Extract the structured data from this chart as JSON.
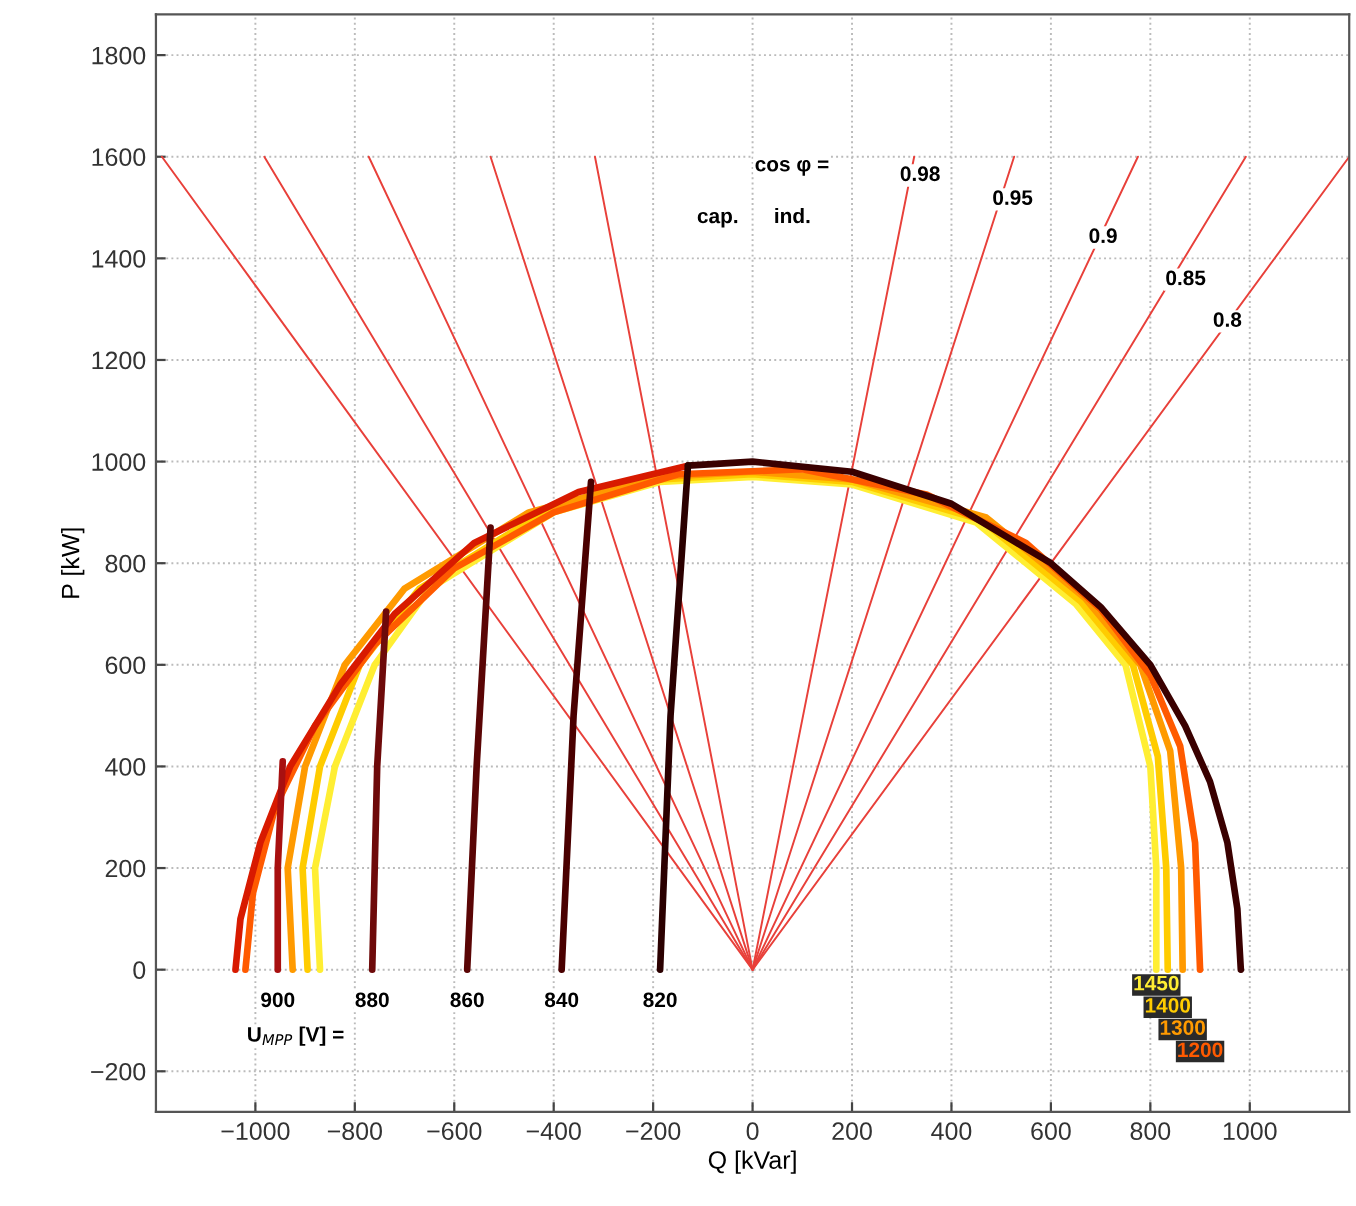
{
  "chart_data": {
    "type": "line",
    "xlabel": "Q [kVar]",
    "ylabel": "P [kW]",
    "xlim": [
      -1200,
      1200
    ],
    "ylim": [
      -280,
      1880
    ],
    "xticks": [
      -1000,
      -800,
      -600,
      -400,
      -200,
      0,
      200,
      400,
      600,
      800,
      1000
    ],
    "yticks": [
      -200,
      0,
      200,
      400,
      600,
      800,
      1000,
      1200,
      1400,
      1600,
      1800
    ],
    "grid": true,
    "series": [
      {
        "color": "#e8403a",
        "x": [
          0,
          -1188
        ],
        "values": [
          0,
          1600
        ]
      },
      {
        "color": "#e8403a",
        "x": [
          0,
          -982
        ],
        "values": [
          0,
          1600
        ]
      },
      {
        "color": "#e8403a",
        "x": [
          0,
          -772
        ],
        "values": [
          0,
          1600
        ]
      },
      {
        "color": "#e8403a",
        "x": [
          0,
          -527
        ],
        "values": [
          0,
          1600
        ]
      },
      {
        "color": "#e8403a",
        "x": [
          0,
          -317
        ],
        "values": [
          0,
          1600
        ]
      },
      {
        "color": "#e8403a",
        "x": [
          0,
          325
        ],
        "values": [
          0,
          1600
        ]
      },
      {
        "color": "#e8403a",
        "x": [
          0,
          526
        ],
        "values": [
          0,
          1600
        ]
      },
      {
        "color": "#e8403a",
        "x": [
          0,
          775
        ],
        "values": [
          0,
          1600
        ]
      },
      {
        "color": "#e8403a",
        "x": [
          0,
          992
        ],
        "values": [
          0,
          1600
        ]
      },
      {
        "color": "#e8403a",
        "x": [
          0,
          1200
        ],
        "values": [
          0,
          1600
        ]
      },
      {
        "name": "1450",
        "color": "#ffee33",
        "x": [
          -870,
          -880,
          -840,
          -760,
          -650,
          -400,
          -186,
          0,
          200,
          450,
          650,
          750,
          800,
          812,
          812
        ],
        "values": [
          0,
          200,
          400,
          600,
          750,
          900,
          960,
          970,
          955,
          880,
          720,
          600,
          400,
          200,
          0
        ]
      },
      {
        "name": "1400",
        "color": "#ffcc00",
        "x": [
          -895,
          -905,
          -870,
          -790,
          -670,
          -420,
          -186,
          0,
          200,
          460,
          660,
          765,
          815,
          832,
          835
        ],
        "values": [
          0,
          200,
          400,
          600,
          750,
          900,
          965,
          975,
          960,
          885,
          725,
          600,
          420,
          200,
          0
        ]
      },
      {
        "name": "1300",
        "color": "#ff9a00",
        "x": [
          -925,
          -935,
          -900,
          -820,
          -700,
          -450,
          -186,
          0,
          200,
          470,
          670,
          780,
          840,
          862,
          865
        ],
        "values": [
          0,
          200,
          400,
          600,
          750,
          900,
          970,
          980,
          965,
          890,
          730,
          600,
          430,
          200,
          0
        ]
      },
      {
        "name": "1200",
        "color": "#ff5a00",
        "x": [
          -1020,
          -1005,
          -960,
          -880,
          -760,
          -600,
          -400,
          -150,
          100,
          350,
          550,
          700,
          800,
          860,
          890,
          900
        ],
        "values": [
          0,
          150,
          320,
          480,
          640,
          790,
          900,
          975,
          985,
          935,
          840,
          710,
          580,
          440,
          250,
          0
        ]
      },
      {
        "color": "#d81a00",
        "x": [
          -1040,
          -1030,
          -990,
          -930,
          -830,
          -720,
          -560,
          -350,
          -130
        ],
        "values": [
          0,
          100,
          250,
          400,
          560,
          700,
          840,
          940,
          992
        ]
      },
      {
        "color": "#3a0000",
        "x": [
          -130,
          0,
          200,
          400,
          600,
          700,
          800,
          870,
          920,
          955,
          975,
          982
        ],
        "values": [
          992,
          1000,
          980,
          917,
          800,
          714,
          600,
          480,
          370,
          250,
          120,
          0
        ]
      },
      {
        "name": "900",
        "color": "#a81010",
        "x": [
          -945,
          -955,
          -955
        ],
        "values": [
          410,
          200,
          0
        ]
      },
      {
        "name": "880",
        "color": "#6e0a0a",
        "x": [
          -737,
          -755,
          -765
        ],
        "values": [
          705,
          400,
          0
        ]
      },
      {
        "name": "860",
        "color": "#5a0505",
        "x": [
          -527,
          -555,
          -574
        ],
        "values": [
          870,
          400,
          0
        ]
      },
      {
        "name": "840",
        "color": "#4a0000",
        "x": [
          -325,
          -360,
          -384
        ],
        "values": [
          960,
          500,
          0
        ]
      },
      {
        "name": "820",
        "color": "#2b0000",
        "x": [
          -130,
          -165,
          -186
        ],
        "values": [
          992,
          500,
          0
        ]
      }
    ],
    "annotations": [
      "cos φ =",
      {
        "text": "cap.",
        "x": -70,
        "y": 1480
      },
      {
        "text": "ind.",
        "x": 80,
        "y": 1480
      },
      {
        "text": "0.98",
        "x": 337,
        "y": 1563
      },
      {
        "text": "0.95",
        "x": 523,
        "y": 1516
      },
      {
        "text": "0.9",
        "x": 705,
        "y": 1441
      },
      {
        "text": "0.85",
        "x": 871,
        "y": 1358
      },
      {
        "text": "0.8",
        "x": 955,
        "y": 1276
      },
      "U$_{MPP}$ [V] ="
    ]
  }
}
